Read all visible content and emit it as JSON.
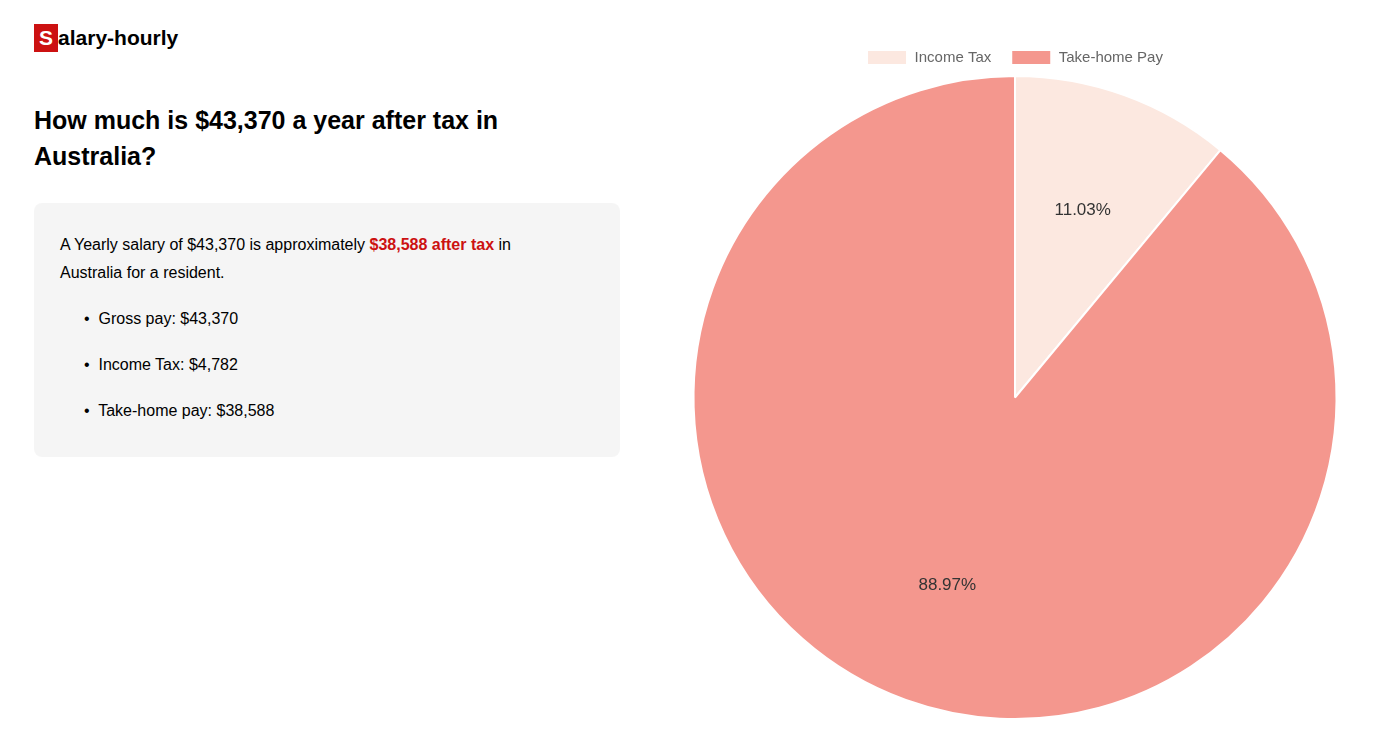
{
  "chart_data": {
    "type": "pie",
    "title": [
      "How much is $43,370 a year after tax in",
      "Australia?"
    ],
    "categories": [
      "Income Tax",
      "Take-home Pay"
    ],
    "values": [
      11.03,
      88.97
    ],
    "value_labels": [
      "11.03%",
      "88.97%"
    ],
    "colors": [
      "#fce8e0",
      "#f4978e"
    ],
    "data_labels": true,
    "legend": "top",
    "annotations": [
      [
        {
          "text": "S",
          "color": "#ffffff",
          "background": "#cc1111"
        },
        {
          "text": "alary-hourly"
        }
      ],
      [
        {
          "text": "A Yearly salary of $43,370 is approximately "
        },
        {
          "text": "$38,588 after tax",
          "color": "#cc1111"
        },
        {
          "text": " in"
        }
      ],
      [
        {
          "text": "Australia for a resident."
        }
      ],
      [
        {
          "text": "•  Gross pay: $43,370"
        }
      ],
      [
        {
          "text": "•  Income Tax: $4,782"
        }
      ],
      [
        {
          "text": "•  Take-home pay: $38,588"
        }
      ]
    ]
  }
}
